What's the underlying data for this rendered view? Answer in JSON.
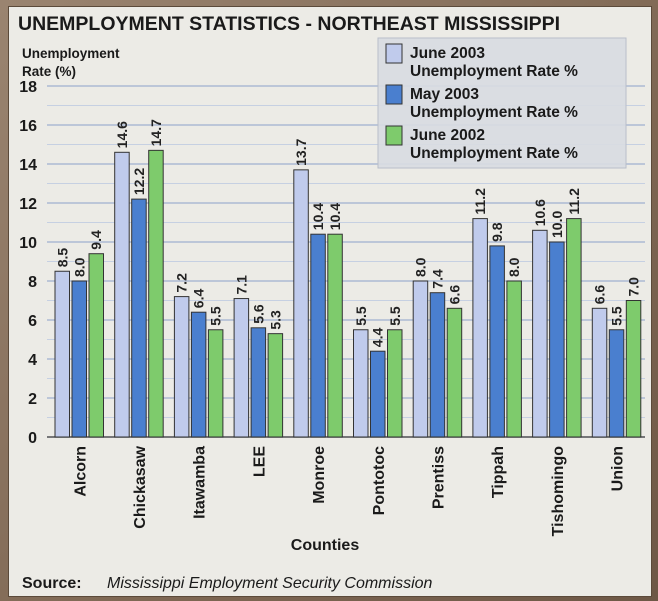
{
  "chart_data": {
    "type": "bar",
    "title": "UNEMPLOYMENT STATISTICS - NORTHEAST MISSISSIPPI",
    "ylabel": "Unemployment\nRate (%)",
    "xlabel": "Counties",
    "ylim": [
      0,
      18
    ],
    "yticks": [
      0,
      2,
      4,
      6,
      8,
      10,
      12,
      14,
      16,
      18
    ],
    "grid": true,
    "legend_position": "top-right",
    "categories": [
      "Alcorn",
      "Chickasaw",
      "Itawamba",
      "LEE",
      "Monroe",
      "Pontotoc",
      "Prentiss",
      "Tippah",
      "Tishomingo",
      "Union"
    ],
    "series": [
      {
        "name": "June 2003\nUnemployment Rate %",
        "color": "#c0cbec",
        "values": [
          8.5,
          14.6,
          7.2,
          7.1,
          13.7,
          5.5,
          8.0,
          11.2,
          10.6,
          6.6
        ]
      },
      {
        "name": "May 2003\nUnemployment Rate %",
        "color": "#4a7fcf",
        "values": [
          8.0,
          12.2,
          6.4,
          5.6,
          10.4,
          4.4,
          7.4,
          9.8,
          10.0,
          5.5
        ]
      },
      {
        "name": "June 2002\nUnemployment Rate %",
        "color": "#7ecb6c",
        "values": [
          9.4,
          14.7,
          5.5,
          5.3,
          10.4,
          5.5,
          6.6,
          8.0,
          11.2,
          7.0
        ]
      }
    ],
    "source_label": "Source:",
    "source_text": "Mississippi Employment Security Commission"
  }
}
